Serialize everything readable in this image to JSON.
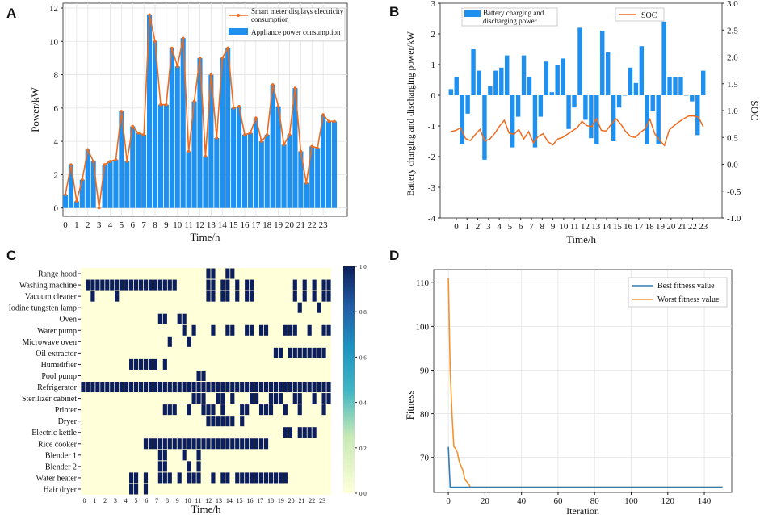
{
  "panels": [
    "A",
    "B",
    "C",
    "D"
  ],
  "colors": {
    "bar": "#1e90f0",
    "line": "#f06a1c",
    "best": "#2c7fb8",
    "worst": "#f5922f",
    "heat_lo": "#ffffd9",
    "heat_hi": "#0c1f5c"
  },
  "chart_data": [
    {
      "panel": "A",
      "type": "bar+line",
      "xlabel": "Time/h",
      "ylabel": "Power/kW",
      "xlim": [
        0,
        24
      ],
      "ylim": [
        -0.5,
        12
      ],
      "x_ticks": [
        0,
        1,
        2,
        3,
        4,
        5,
        6,
        7,
        8,
        9,
        10,
        11,
        12,
        13,
        14,
        15,
        16,
        17,
        18,
        19,
        20,
        21,
        22,
        23
      ],
      "y_ticks": [
        0,
        2,
        4,
        6,
        8,
        10,
        12
      ],
      "legend": [
        "Smart meter displays electricity consumption",
        "Appliance power consumption"
      ],
      "series": [
        {
          "name": "Appliance power consumption",
          "values": [
            0.8,
            2.6,
            0.4,
            1.7,
            3.5,
            2.8,
            0.0,
            2.6,
            2.8,
            2.9,
            5.8,
            2.8,
            4.9,
            4.5,
            4.4,
            11.6,
            10.0,
            6.2,
            6.2,
            9.6,
            8.5,
            10.2,
            3.4,
            6.4,
            9.0,
            3.1,
            8.0,
            4.2,
            9.0,
            9.6,
            6.0,
            6.1,
            4.4,
            4.5,
            5.4,
            4.0,
            4.4,
            7.4,
            6.1,
            3.8,
            4.4,
            7.2,
            3.4,
            1.5,
            3.7,
            3.6,
            5.6,
            5.2,
            5.2
          ]
        },
        {
          "name": "Smart meter displays electricity consumption",
          "values": [
            0.8,
            2.6,
            0.4,
            1.7,
            3.5,
            2.8,
            0.0,
            2.6,
            2.8,
            2.9,
            5.8,
            2.8,
            4.9,
            4.5,
            4.4,
            11.6,
            10.0,
            6.2,
            6.2,
            9.6,
            8.5,
            10.2,
            3.4,
            6.4,
            9.0,
            3.1,
            8.0,
            4.2,
            9.0,
            9.6,
            6.0,
            6.1,
            4.4,
            4.5,
            5.4,
            4.0,
            4.4,
            7.4,
            6.1,
            3.8,
            4.4,
            7.2,
            3.4,
            1.5,
            3.7,
            3.6,
            5.6,
            5.2,
            5.2
          ]
        }
      ]
    },
    {
      "panel": "B",
      "type": "bar+line",
      "xlabel": "Time/h",
      "ylabel": "Battery charging and discharging power/kW",
      "y2label": "SOC",
      "xlim": [
        -1.5,
        24
      ],
      "ylim": [
        -4,
        3
      ],
      "y2lim": [
        -1.0,
        3.0
      ],
      "x_ticks": [
        0,
        1,
        2,
        3,
        4,
        5,
        6,
        7,
        8,
        9,
        10,
        11,
        12,
        13,
        14,
        15,
        16,
        17,
        18,
        19,
        20,
        21,
        22,
        23
      ],
      "y_ticks": [
        -4,
        -3,
        -2,
        -1,
        0,
        1,
        2,
        3
      ],
      "y2_ticks": [
        "-1.0",
        "-0.5",
        "0.0",
        "0.5",
        "1.0",
        "1.5",
        "2.0",
        "2.5",
        "3.0"
      ],
      "legend": [
        "Battery charging and discharging power",
        "SOC"
      ],
      "series": [
        {
          "name": "Battery charging and discharging power",
          "values": [
            0.2,
            0.6,
            -1.6,
            -0.6,
            1.5,
            0.8,
            -2.1,
            0.3,
            0.8,
            0.9,
            1.3,
            -1.7,
            -0.7,
            1.3,
            0.6,
            -1.7,
            -0.7,
            1.1,
            0.1,
            1.0,
            1.2,
            -1.1,
            -0.4,
            2.2,
            -0.8,
            -1.4,
            -1.6,
            2.1,
            1.4,
            -1.5,
            -0.4,
            0.0,
            0.9,
            0.4,
            1.6,
            -1.6,
            -0.5,
            -1.6,
            2.4,
            0.6,
            0.6,
            0.6,
            0.0,
            -0.2,
            -1.3,
            0.8
          ]
        },
        {
          "name": "SOC",
          "values": [
            0.61,
            0.63,
            0.68,
            0.48,
            0.44,
            0.55,
            0.65,
            0.43,
            0.47,
            0.57,
            0.71,
            0.82,
            0.58,
            0.56,
            0.65,
            0.47,
            0.61,
            0.4,
            0.52,
            0.57,
            0.42,
            0.36,
            0.47,
            0.5,
            0.56,
            0.62,
            0.68,
            0.8,
            0.72,
            0.7,
            0.85,
            0.63,
            0.62,
            0.74,
            0.85,
            0.75,
            0.61,
            0.52,
            0.5,
            0.59,
            0.66,
            0.84,
            0.57,
            0.45,
            0.35,
            0.64,
            0.72,
            0.79,
            0.85,
            0.9,
            0.9,
            0.88,
            0.7
          ]
        }
      ]
    },
    {
      "panel": "C",
      "type": "heatmap",
      "xlabel": "Time/h",
      "x_ticks": [
        0,
        1,
        2,
        3,
        4,
        5,
        6,
        7,
        8,
        9,
        10,
        11,
        12,
        13,
        14,
        15,
        16,
        17,
        18,
        19,
        20,
        21,
        22,
        23
      ],
      "colorbar_ticks": [
        "0.0",
        "0.2",
        "0.4",
        "0.6",
        "0.8",
        "1.0"
      ],
      "rows": [
        {
          "label": "Range hood",
          "on": [
            [
              26,
              27
            ],
            [
              30,
              31
            ]
          ]
        },
        {
          "label": "Washing machine",
          "on": [
            [
              1,
              19
            ],
            [
              26,
              27
            ],
            [
              29,
              30
            ],
            [
              32,
              32
            ],
            [
              34,
              35
            ],
            [
              44,
              44
            ],
            [
              46,
              46
            ],
            [
              48,
              48
            ],
            [
              50,
              51
            ]
          ]
        },
        {
          "label": "Vacuum cleaner",
          "on": [
            [
              2,
              2
            ],
            [
              7,
              7
            ],
            [
              26,
              27
            ],
            [
              29,
              30
            ],
            [
              32,
              32
            ],
            [
              34,
              35
            ],
            [
              44,
              44
            ],
            [
              46,
              46
            ],
            [
              48,
              48
            ],
            [
              50,
              51
            ]
          ]
        },
        {
          "label": "Iodine tungsten lamp",
          "on": [
            [
              45,
              45
            ],
            [
              49,
              49
            ]
          ]
        },
        {
          "label": "Oven",
          "on": [
            [
              16,
              17
            ],
            [
              20,
              21
            ]
          ]
        },
        {
          "label": "Water pump",
          "on": [
            [
              21,
              21
            ],
            [
              23,
              23
            ],
            [
              27,
              27
            ],
            [
              30,
              31
            ],
            [
              34,
              35
            ],
            [
              37,
              38
            ],
            [
              42,
              44
            ],
            [
              47,
              47
            ],
            [
              50,
              51
            ]
          ]
        },
        {
          "label": "Microwave oven",
          "on": [
            [
              18,
              18
            ],
            [
              22,
              22
            ]
          ]
        },
        {
          "label": "Oil extractor",
          "on": [
            [
              40,
              41
            ],
            [
              43,
              50
            ]
          ]
        },
        {
          "label": "Humidifier",
          "on": [
            [
              10,
              15
            ],
            [
              17,
              17
            ]
          ]
        },
        {
          "label": "Pool pump",
          "on": [
            [
              24,
              25
            ]
          ]
        },
        {
          "label": "Refrigerator",
          "on": [
            [
              0,
              51
            ]
          ]
        },
        {
          "label": "Sterilizer cabinet",
          "on": [
            [
              23,
              25
            ],
            [
              28,
              29
            ],
            [
              31,
              31
            ],
            [
              35,
              36
            ],
            [
              39,
              41
            ],
            [
              44,
              45
            ],
            [
              48,
              48
            ],
            [
              50,
              51
            ]
          ]
        },
        {
          "label": "Printer",
          "on": [
            [
              17,
              19
            ],
            [
              22,
              22
            ],
            [
              25,
              27
            ],
            [
              29,
              29
            ],
            [
              33,
              34
            ],
            [
              37,
              39
            ],
            [
              42,
              42
            ],
            [
              45,
              45
            ],
            [
              50,
              50
            ]
          ]
        },
        {
          "label": "Dryer",
          "on": [
            [
              26,
              31
            ],
            [
              33,
              33
            ]
          ]
        },
        {
          "label": "Electric kettle",
          "on": [
            [
              42,
              43
            ],
            [
              45,
              48
            ]
          ]
        },
        {
          "label": "Rice cooker",
          "on": [
            [
              13,
              38
            ]
          ]
        },
        {
          "label": "Blender 1",
          "on": [
            [
              16,
              17
            ],
            [
              21,
              21
            ],
            [
              24,
              24
            ]
          ]
        },
        {
          "label": "Blender 2",
          "on": [
            [
              16,
              17
            ],
            [
              22,
              22
            ],
            [
              24,
              24
            ]
          ]
        },
        {
          "label": "Water heater",
          "on": [
            [
              10,
              11
            ],
            [
              13,
              13
            ],
            [
              16,
              18
            ],
            [
              20,
              20
            ],
            [
              22,
              24
            ],
            [
              27,
              27
            ],
            [
              29,
              30
            ],
            [
              32,
              42
            ]
          ]
        },
        {
          "label": "Hair dryer",
          "on": [
            [
              10,
              11
            ],
            [
              13,
              13
            ]
          ]
        }
      ]
    },
    {
      "panel": "D",
      "type": "line",
      "xlabel": "Iteration",
      "ylabel": "Fitness",
      "xlim": [
        -8,
        155
      ],
      "ylim": [
        62,
        113
      ],
      "x_ticks": [
        0,
        20,
        40,
        60,
        80,
        100,
        120,
        140
      ],
      "y_ticks": [
        70,
        80,
        90,
        100,
        110
      ],
      "legend": [
        "Best fitness value",
        "Worst fitness value"
      ],
      "series": [
        {
          "name": "Best fitness value",
          "x": [
            0,
            1,
            2,
            5,
            10,
            12,
            150
          ],
          "values": [
            72.4,
            63.2,
            63.2,
            63.2,
            63.2,
            63.2,
            63.2
          ]
        },
        {
          "name": "Worst fitness value",
          "x": [
            0,
            1,
            2,
            3,
            4,
            5,
            6,
            7,
            8,
            9,
            10,
            11,
            12,
            150
          ],
          "values": [
            111,
            90,
            80,
            72.5,
            72,
            71,
            69,
            68,
            67,
            65,
            64.5,
            64,
            63.2,
            63.2
          ]
        }
      ]
    }
  ]
}
